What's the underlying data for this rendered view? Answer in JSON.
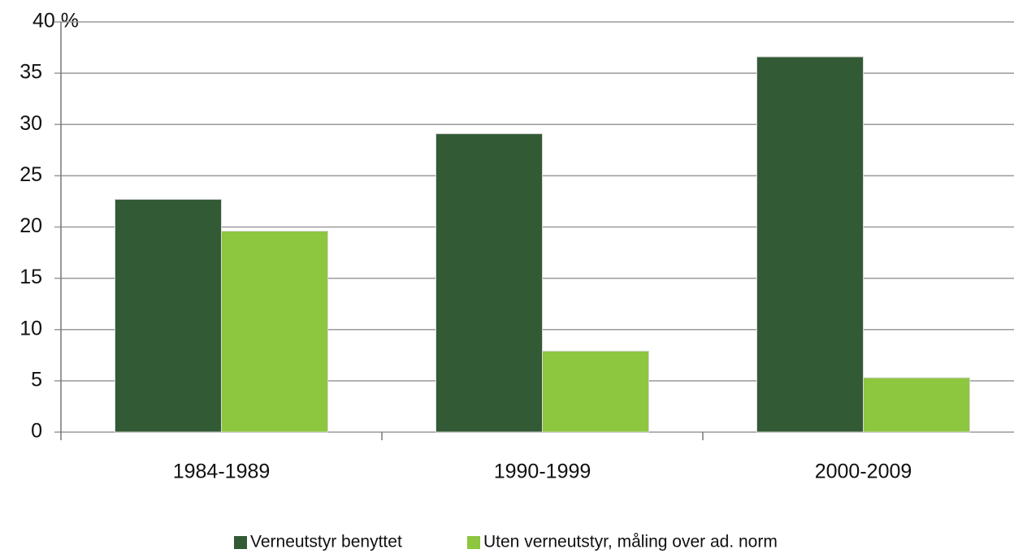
{
  "chart_data": {
    "type": "bar",
    "categories": [
      "1984-1989",
      "1990-1999",
      "2000-2009"
    ],
    "series": [
      {
        "name": "Verneutstyr benyttet",
        "color": "#325a35",
        "values": [
          22.7,
          29.1,
          36.6
        ]
      },
      {
        "name": "Uten verneutstyr, måling over ad. norm",
        "color": "#8dc63f",
        "values": [
          19.6,
          7.9,
          5.3
        ]
      }
    ],
    "ylim": [
      0,
      40
    ],
    "yticks": [
      0,
      5,
      10,
      15,
      20,
      25,
      30,
      35,
      {
        "value": 40,
        "label": "40 %"
      }
    ],
    "grid": true,
    "legend": "bottom"
  }
}
